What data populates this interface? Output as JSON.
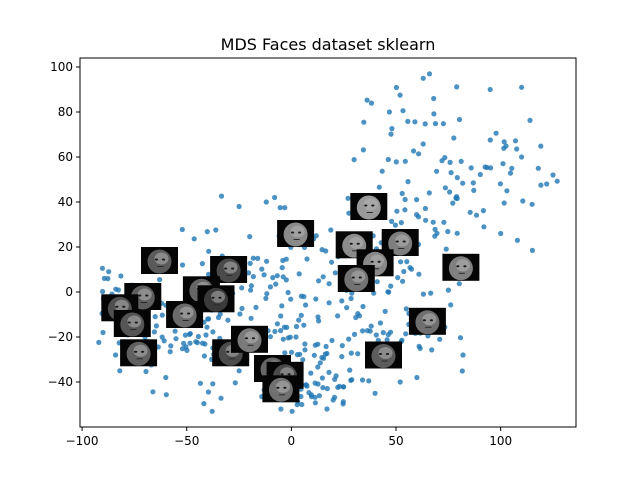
{
  "chart_data": {
    "type": "scatter",
    "title": "MDS Faces dataset sklearn",
    "xlabel": "",
    "ylabel": "",
    "xlim": [
      -101,
      136
    ],
    "ylim": [
      -60,
      104
    ],
    "xticks": [
      -100,
      -50,
      0,
      50,
      100
    ],
    "yticks": [
      -40,
      -20,
      0,
      20,
      40,
      60,
      80,
      100
    ],
    "grid": false,
    "legend": "none",
    "point_color": "#1f77b4",
    "seed": 7,
    "clusters": [
      {
        "cx": -75,
        "cy": -8,
        "sx": 10,
        "sy": 12,
        "n": 55
      },
      {
        "cx": -40,
        "cy": -18,
        "sx": 14,
        "sy": 14,
        "n": 60
      },
      {
        "cx": -10,
        "cy": 5,
        "sx": 14,
        "sy": 16,
        "n": 55
      },
      {
        "cx": 15,
        "cy": -20,
        "sx": 14,
        "sy": 14,
        "n": 65
      },
      {
        "cx": 10,
        "cy": -42,
        "sx": 12,
        "sy": 6,
        "n": 40
      },
      {
        "cx": 40,
        "cy": 15,
        "sx": 14,
        "sy": 16,
        "n": 60
      },
      {
        "cx": 65,
        "cy": 40,
        "sx": 14,
        "sy": 16,
        "n": 45
      },
      {
        "cx": 60,
        "cy": -15,
        "sx": 10,
        "sy": 12,
        "n": 25
      },
      {
        "cx": 95,
        "cy": 50,
        "sx": 14,
        "sy": 14,
        "n": 30
      },
      {
        "cx": 50,
        "cy": 75,
        "sx": 12,
        "sy": 10,
        "n": 20
      }
    ],
    "extra_points": [
      [
        -90,
        -18
      ],
      [
        -88,
        -10
      ],
      [
        -84,
        -28
      ],
      [
        -82,
        -35
      ],
      [
        -70,
        -20
      ],
      [
        -78,
        -3
      ],
      [
        -25,
        38
      ],
      [
        -12,
        40
      ],
      [
        -8,
        42
      ],
      [
        66,
        97
      ],
      [
        63,
        95
      ],
      [
        68,
        86
      ],
      [
        95,
        90
      ],
      [
        110,
        91
      ],
      [
        118,
        55
      ],
      [
        125,
        52
      ],
      [
        122,
        48
      ],
      [
        110,
        60
      ],
      [
        115,
        39
      ],
      [
        108,
        23
      ],
      [
        103,
        45
      ],
      [
        92,
        29
      ],
      [
        100,
        26
      ],
      [
        82,
        -28
      ],
      [
        60,
        -38
      ],
      [
        52,
        -40
      ],
      [
        40,
        -45
      ],
      [
        -5,
        -52
      ],
      [
        5,
        -50
      ],
      [
        17,
        -52
      ],
      [
        20,
        -48
      ],
      [
        -60,
        -38
      ],
      [
        -25,
        -35
      ],
      [
        -40,
        -12
      ],
      [
        -52,
        12
      ]
    ],
    "face_thumbnails": [
      {
        "x": -63,
        "y": 14,
        "shade": "#5a5a5a"
      },
      {
        "x": -30,
        "y": 10,
        "shade": "#4a4a4a"
      },
      {
        "x": -43,
        "y": 1,
        "shade": "#666666"
      },
      {
        "x": -36,
        "y": -3,
        "shade": "#3a3a3a"
      },
      {
        "x": -71,
        "y": -2,
        "shade": "#5e5e5e"
      },
      {
        "x": -82,
        "y": -7,
        "shade": "#4f4f4f"
      },
      {
        "x": -51,
        "y": -10,
        "shade": "#6a6a6a"
      },
      {
        "x": -76,
        "y": -14,
        "shade": "#555555"
      },
      {
        "x": -73,
        "y": -27,
        "shade": "#606060"
      },
      {
        "x": -29,
        "y": -27,
        "shade": "#4c4c4c"
      },
      {
        "x": -20,
        "y": -21,
        "shade": "#7a7a7a"
      },
      {
        "x": 2,
        "y": 26,
        "shade": "#8a8a8a"
      },
      {
        "x": 37,
        "y": 38,
        "shade": "#9a9a9a"
      },
      {
        "x": 30,
        "y": 21,
        "shade": "#8c8c8c"
      },
      {
        "x": 52,
        "y": 22,
        "shade": "#7e7e7e"
      },
      {
        "x": 40,
        "y": 13,
        "shade": "#888888"
      },
      {
        "x": 31,
        "y": 6,
        "shade": "#727272"
      },
      {
        "x": 81,
        "y": 11,
        "shade": "#808080"
      },
      {
        "x": 65,
        "y": -13,
        "shade": "#6e6e6e"
      },
      {
        "x": 44,
        "y": -28,
        "shade": "#5c5c5c"
      },
      {
        "x": -9,
        "y": -34,
        "shade": "#666666"
      },
      {
        "x": -3,
        "y": -37,
        "shade": "#4a4a4a"
      },
      {
        "x": -5,
        "y": -43,
        "shade": "#707070"
      }
    ]
  }
}
